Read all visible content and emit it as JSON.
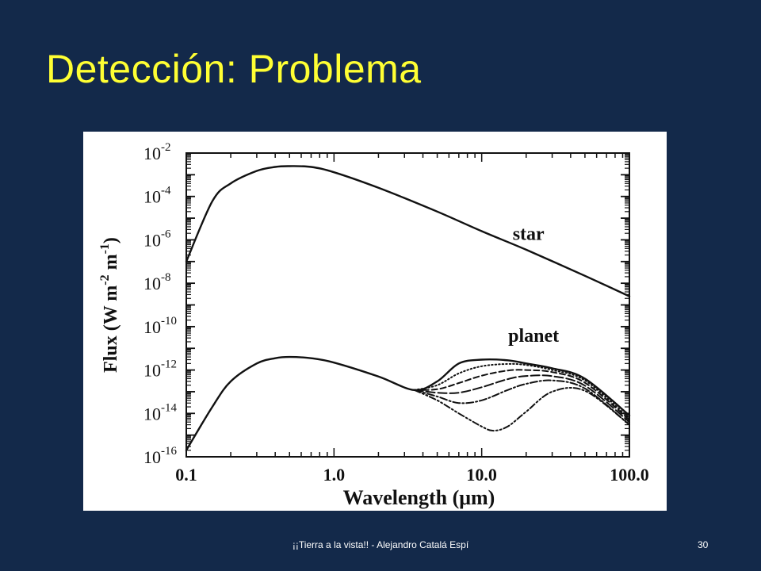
{
  "slide": {
    "title": "Detección: Problema",
    "footer": "¡¡Tierra a la vista!! - Alejandro Catalá Espí",
    "page_number": "30"
  },
  "colors": {
    "background": "#13294a",
    "title": "#ffff33",
    "chart_background": "#ffffff",
    "ink": "#111111"
  },
  "chart_data": {
    "type": "line",
    "title": "",
    "xlabel": "Wavelength (μm)",
    "ylabel": "Flux (W m-2 m-1)",
    "xscale": "log",
    "yscale": "log",
    "xlim": [
      0.1,
      100.0
    ],
    "ylim": [
      1e-16,
      0.01
    ],
    "x_ticks": [
      {
        "value": 0.1,
        "label": "0.1"
      },
      {
        "value": 1.0,
        "label": "1.0"
      },
      {
        "value": 10.0,
        "label": "10.0"
      },
      {
        "value": 100.0,
        "label": "100.0"
      }
    ],
    "y_ticks": [
      {
        "exp": -2,
        "base": "10",
        "sup": "-2"
      },
      {
        "exp": -4,
        "base": "10",
        "sup": "-4"
      },
      {
        "exp": -6,
        "base": "10",
        "sup": "-6"
      },
      {
        "exp": -8,
        "base": "10",
        "sup": "-8"
      },
      {
        "exp": -10,
        "base": "10",
        "sup": "-10"
      },
      {
        "exp": -12,
        "base": "10",
        "sup": "-12"
      },
      {
        "exp": -14,
        "base": "10",
        "sup": "-14"
      },
      {
        "exp": -16,
        "base": "10",
        "sup": "-16"
      }
    ],
    "series": [
      {
        "name": "star",
        "label_at": {
          "x": 0.45,
          "y": 1e-06
        },
        "style": "solid",
        "x": [
          0.1,
          0.15,
          0.2,
          0.3,
          0.4,
          0.5,
          0.7,
          1.0,
          2.0,
          5.0,
          10.0,
          20.0,
          50.0,
          100.0
        ],
        "y": [
          1e-07,
          6e-05,
          0.0004,
          0.0015,
          0.0023,
          0.0025,
          0.0023,
          0.0013,
          0.00025,
          2e-05,
          2.5e-06,
          3.5e-07,
          2.2e-08,
          2.5e-09
        ]
      },
      {
        "name": "planet",
        "label_at": {
          "x": 0.42,
          "y": 2e-11
        },
        "style": "solid",
        "x": [
          0.1,
          0.15,
          0.2,
          0.3,
          0.4,
          0.5,
          0.7,
          1.0,
          2.0,
          3.5,
          5.0,
          7.0,
          10.0,
          15.0,
          20.0,
          30.0,
          50.0,
          100.0
        ],
        "y": [
          2e-16,
          2e-14,
          3e-13,
          2e-12,
          3.5e-12,
          4e-12,
          3.5e-12,
          2.2e-12,
          5e-13,
          1.2e-13,
          3e-13,
          2e-12,
          3e-12,
          2.8e-12,
          2e-12,
          1.2e-12,
          4e-13,
          8e-15
        ]
      },
      {
        "name": "",
        "style": "dotted",
        "x": [
          3.5,
          5.0,
          7.0,
          10.0,
          15.0,
          20.0,
          30.0,
          50.0,
          100.0
        ],
        "y": [
          1.2e-13,
          2e-13,
          7e-13,
          1.5e-12,
          1.9e-12,
          1.7e-12,
          1e-12,
          3.3e-13,
          6e-15
        ]
      },
      {
        "name": "",
        "style": "dashed",
        "x": [
          3.5,
          5.0,
          7.0,
          10.0,
          15.0,
          20.0,
          30.0,
          50.0,
          100.0
        ],
        "y": [
          1.2e-13,
          1.3e-13,
          2.5e-13,
          5.5e-13,
          9.5e-13,
          1e-12,
          8e-13,
          2.6e-13,
          5e-15
        ]
      },
      {
        "name": "",
        "style": "longdash",
        "x": [
          3.5,
          5.0,
          7.0,
          10.0,
          15.0,
          20.0,
          30.0,
          50.0,
          100.0
        ],
        "y": [
          1.2e-13,
          9e-14,
          9e-14,
          1.6e-13,
          3.8e-13,
          5.3e-13,
          5.2e-13,
          1.9e-13,
          4e-15
        ]
      },
      {
        "name": "",
        "style": "dashdot",
        "x": [
          3.5,
          5.0,
          7.0,
          10.0,
          15.0,
          20.0,
          30.0,
          50.0,
          100.0
        ],
        "y": [
          1.2e-13,
          6e-14,
          3e-14,
          4e-14,
          1.2e-13,
          2.3e-13,
          3.3e-13,
          1.4e-13,
          3e-15
        ]
      },
      {
        "name": "",
        "style": "dashdotdot",
        "x": [
          3.5,
          5.0,
          7.0,
          10.0,
          12.0,
          15.0,
          20.0,
          30.0,
          50.0,
          100.0
        ],
        "y": [
          1.2e-13,
          4e-14,
          1e-14,
          2.5e-15,
          1.6e-15,
          2.5e-15,
          1.2e-14,
          1e-13,
          1.1e-13,
          3e-15
        ]
      }
    ]
  }
}
